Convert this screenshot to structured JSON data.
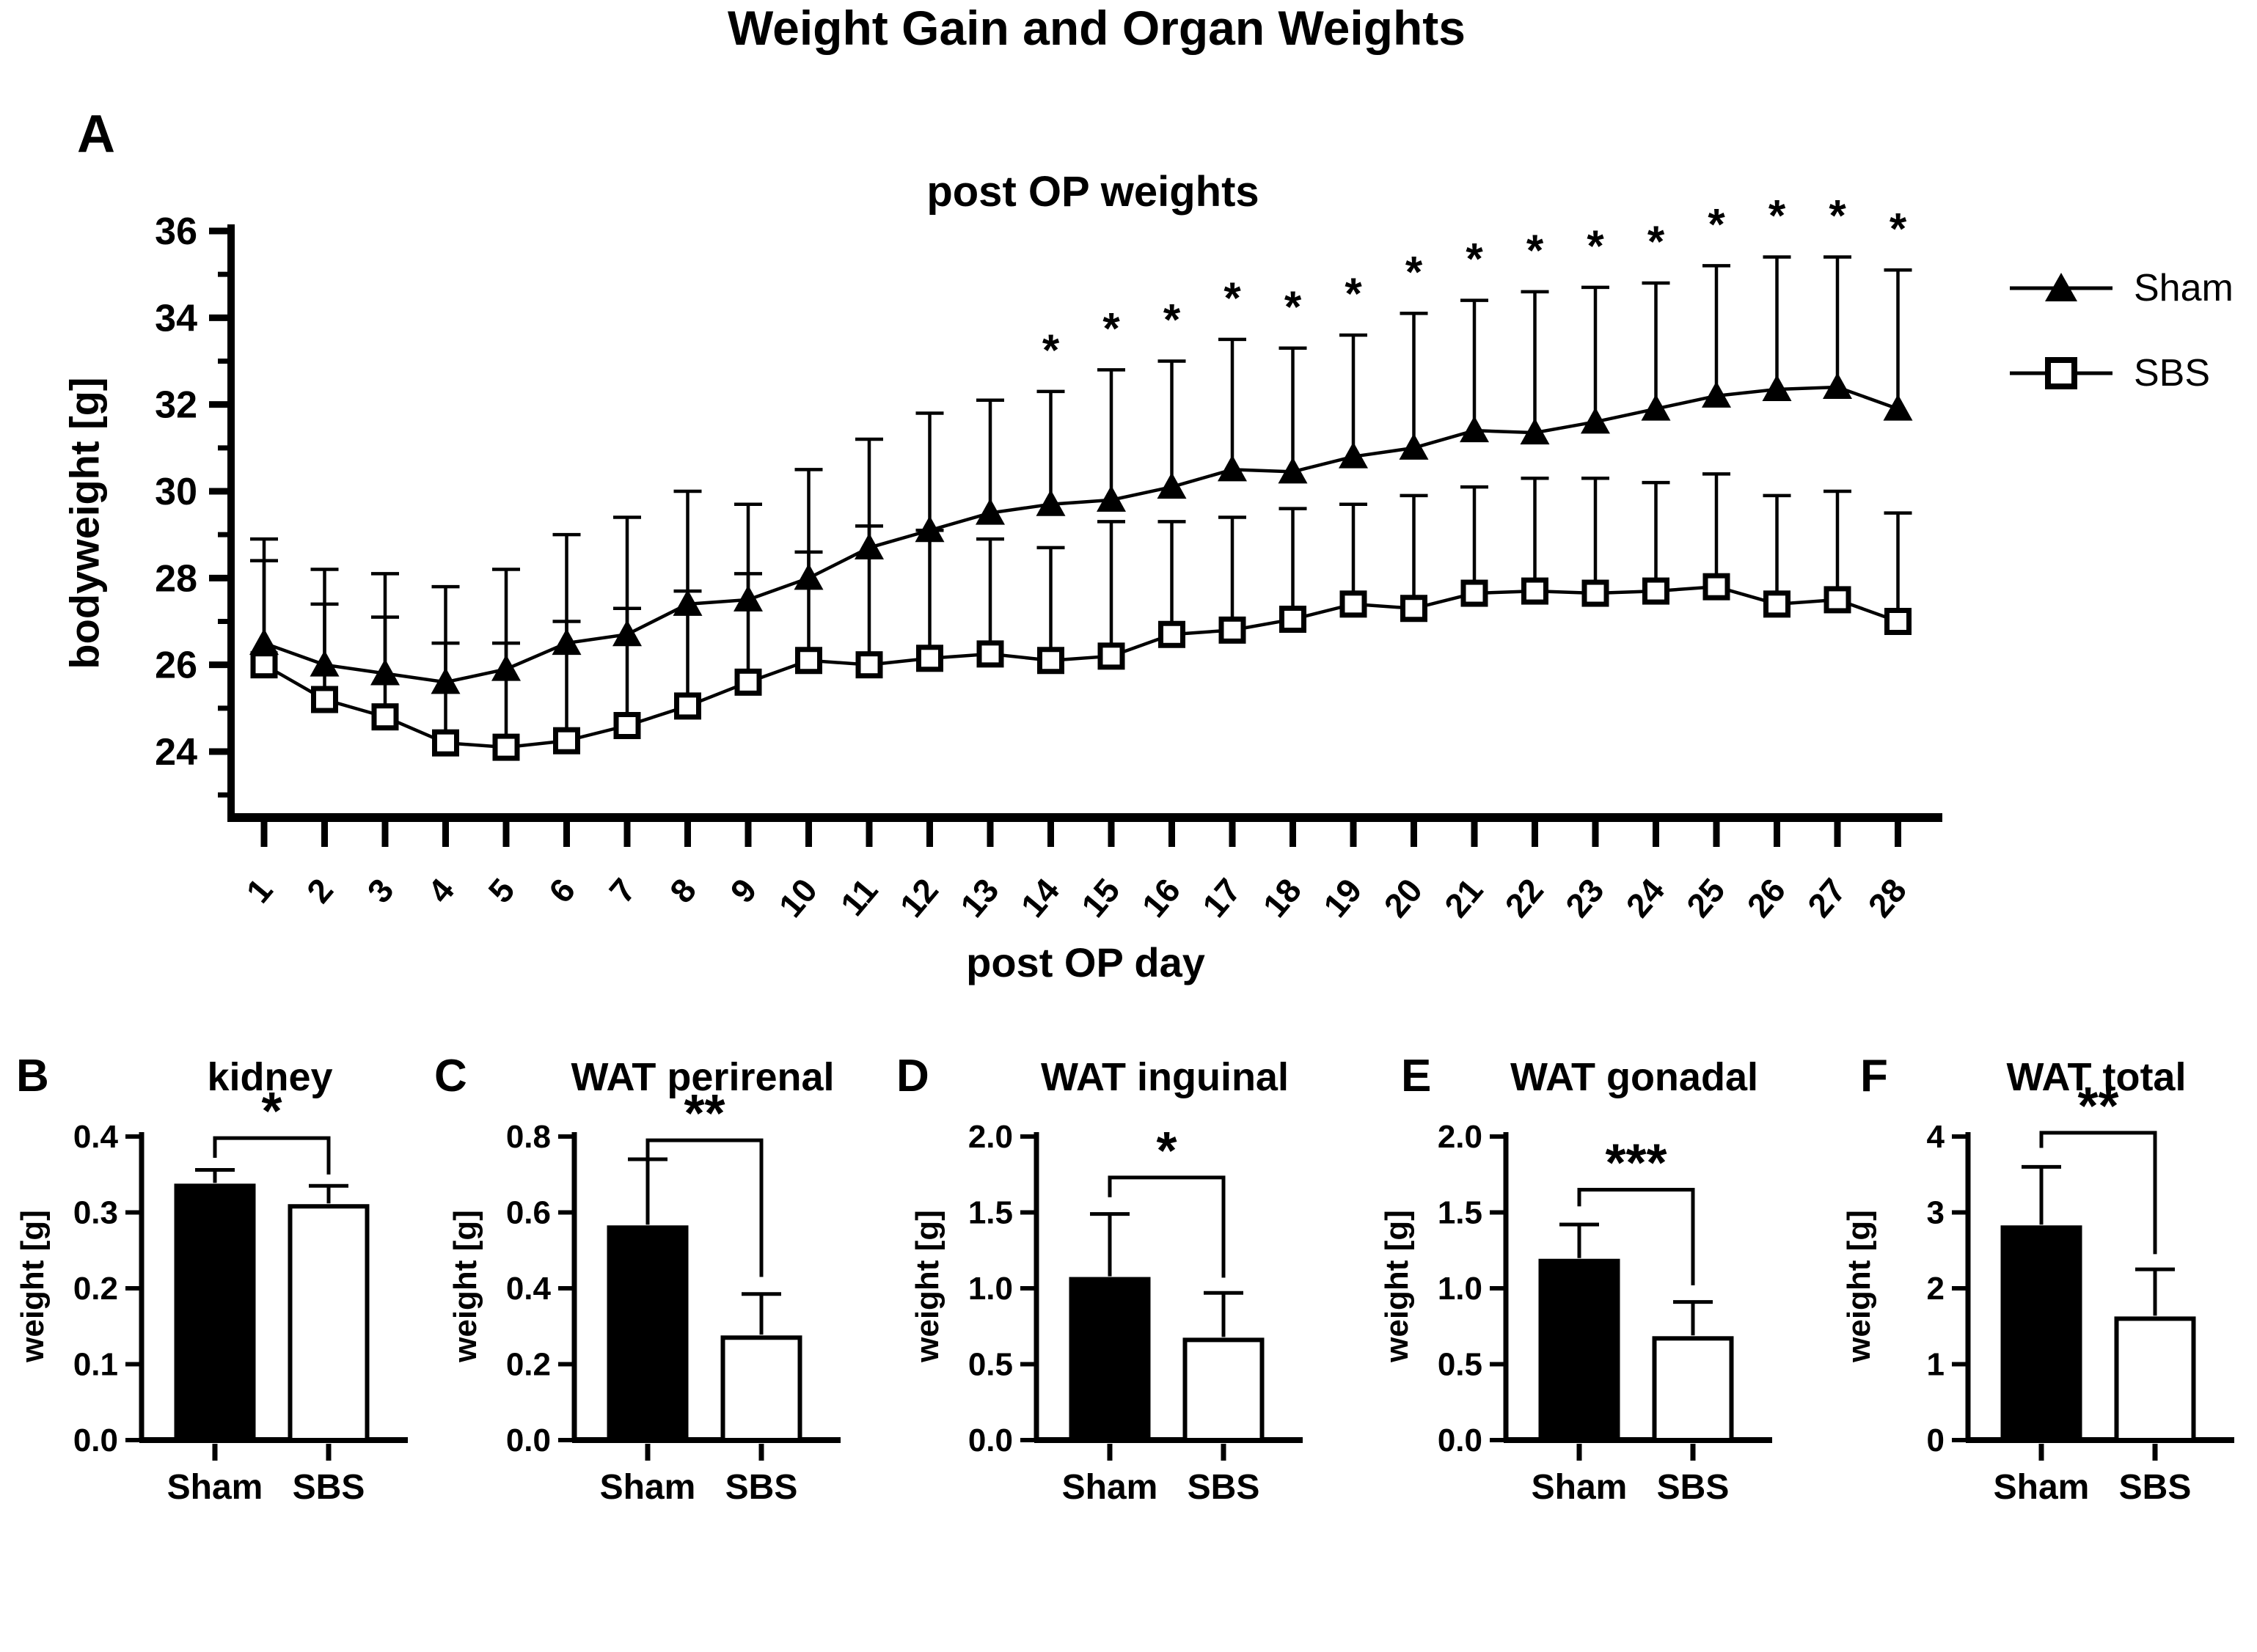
{
  "figure_title": "Weight Gain and Organ Weights",
  "colors": {
    "ink": "#000000",
    "background": "#ffffff",
    "sham_fill": "#000000",
    "sbs_fill": "#ffffff"
  },
  "chart_data": [
    {
      "panel": "A",
      "type": "line",
      "title": "post OP weights",
      "xlabel": "post OP day",
      "ylabel": "bodyweight [g]",
      "x": [
        1,
        2,
        3,
        4,
        5,
        6,
        7,
        8,
        9,
        10,
        11,
        12,
        13,
        14,
        15,
        16,
        17,
        18,
        19,
        20,
        21,
        22,
        23,
        24,
        25,
        26,
        27,
        28
      ],
      "ylim": [
        22.5,
        36
      ],
      "yticks": [
        24,
        26,
        28,
        30,
        32,
        34,
        36
      ],
      "ytick_labels": [
        "24",
        "26",
        "28",
        "30",
        "32",
        "34",
        "36"
      ],
      "yticks_minor": [
        23,
        25,
        27,
        29,
        31,
        33,
        35
      ],
      "grid": "off",
      "legend_position": "right",
      "series": [
        {
          "name": "Sham",
          "marker": "filled-triangle",
          "values": [
            26.5,
            26.0,
            25.8,
            25.6,
            25.9,
            26.5,
            26.7,
            27.4,
            27.5,
            28.0,
            28.7,
            29.1,
            29.5,
            29.7,
            29.8,
            30.1,
            30.5,
            30.45,
            30.8,
            31.0,
            31.4,
            31.35,
            31.6,
            31.9,
            32.2,
            32.35,
            32.4,
            31.9
          ],
          "err_up_top": [
            28.9,
            28.2,
            28.1,
            27.8,
            28.2,
            29.0,
            29.4,
            30.0,
            29.7,
            30.5,
            31.2,
            31.8,
            32.1,
            32.3,
            32.8,
            33.0,
            33.5,
            33.3,
            33.6,
            34.1,
            34.4,
            34.6,
            34.7,
            34.8,
            35.2,
            35.4,
            35.4,
            35.1
          ]
        },
        {
          "name": "SBS",
          "marker": "open-square",
          "values": [
            26.0,
            25.2,
            24.8,
            24.2,
            24.1,
            24.25,
            24.6,
            25.05,
            25.6,
            26.1,
            26.0,
            26.15,
            26.25,
            26.1,
            26.2,
            26.7,
            26.8,
            27.05,
            27.4,
            27.3,
            27.65,
            27.7,
            27.65,
            27.7,
            27.8,
            27.4,
            27.5,
            27.0
          ],
          "err_up_top": [
            28.4,
            27.4,
            27.1,
            26.5,
            26.5,
            27.0,
            27.3,
            27.7,
            28.1,
            28.6,
            29.2,
            29.1,
            28.9,
            28.7,
            29.3,
            29.3,
            29.4,
            29.6,
            29.7,
            29.9,
            30.1,
            30.3,
            30.3,
            30.2,
            30.4,
            29.9,
            30.0,
            29.5
          ]
        }
      ],
      "significance": {
        "symbol": "*",
        "days": [
          14,
          15,
          16,
          17,
          18,
          19,
          20,
          21,
          22,
          23,
          24,
          25,
          26,
          27,
          28
        ]
      }
    },
    {
      "panel": "B",
      "type": "bar",
      "title": "kidney",
      "ylabel": "weight [g]",
      "categories": [
        "Sham",
        "SBS"
      ],
      "values": [
        0.335,
        0.308
      ],
      "err_top": [
        0.356,
        0.335
      ],
      "ylim": [
        0,
        0.4
      ],
      "yticks": [
        0,
        0.1,
        0.2,
        0.3,
        0.4
      ],
      "ytick_labels": [
        "0.0",
        "0.1",
        "0.2",
        "0.3",
        "0.4"
      ],
      "bar_fills": [
        "#000000",
        "#ffffff"
      ],
      "significance": {
        "symbol": "*",
        "bracket_y": 0.398,
        "left_drop_to": 0.372,
        "right_drop_to": 0.35
      }
    },
    {
      "panel": "C",
      "type": "bar",
      "title": "WAT perirenal",
      "ylabel": "weight [g]",
      "categories": [
        "Sham",
        "SBS"
      ],
      "values": [
        0.56,
        0.27
      ],
      "err_top": [
        0.74,
        0.385
      ],
      "ylim": [
        0,
        0.8
      ],
      "yticks": [
        0,
        0.2,
        0.4,
        0.6,
        0.8
      ],
      "ytick_labels": [
        "0.0",
        "0.2",
        "0.4",
        "0.6",
        "0.8"
      ],
      "bar_fills": [
        "#000000",
        "#ffffff"
      ],
      "significance": {
        "symbol": "**",
        "bracket_y": 0.79,
        "left_drop_to": 0.73,
        "right_drop_to": 0.43
      }
    },
    {
      "panel": "D",
      "type": "bar",
      "title": "WAT inguinal",
      "ylabel": "weight [g]",
      "categories": [
        "Sham",
        "SBS"
      ],
      "values": [
        1.06,
        0.66
      ],
      "err_top": [
        1.49,
        0.97
      ],
      "ylim": [
        0,
        2.0
      ],
      "yticks": [
        0,
        0.5,
        1.0,
        1.5,
        2.0
      ],
      "ytick_labels": [
        "0.0",
        "0.5",
        "1.0",
        "1.5",
        "2.0"
      ],
      "bar_fills": [
        "#000000",
        "#ffffff"
      ],
      "significance": {
        "symbol": "*",
        "bracket_y": 1.73,
        "left_drop_to": 1.6,
        "right_drop_to": 1.07
      }
    },
    {
      "panel": "E",
      "type": "bar",
      "title": "WAT gonadal",
      "ylabel": "weight [g]",
      "categories": [
        "Sham",
        "SBS"
      ],
      "values": [
        1.18,
        0.67
      ],
      "err_top": [
        1.42,
        0.91
      ],
      "ylim": [
        0,
        2.0
      ],
      "yticks": [
        0,
        0.5,
        1.0,
        1.5,
        2.0
      ],
      "ytick_labels": [
        "0.0",
        "0.5",
        "1.0",
        "1.5",
        "2.0"
      ],
      "bar_fills": [
        "#000000",
        "#ffffff"
      ],
      "significance": {
        "symbol": "***",
        "bracket_y": 1.65,
        "left_drop_to": 1.54,
        "right_drop_to": 1.02
      }
    },
    {
      "panel": "F",
      "type": "bar",
      "title": "WAT total",
      "ylabel": "weight [g]",
      "categories": [
        "Sham",
        "SBS"
      ],
      "values": [
        2.8,
        1.6
      ],
      "err_top": [
        3.6,
        2.25
      ],
      "ylim": [
        0,
        4
      ],
      "yticks": [
        0,
        1,
        2,
        3,
        4
      ],
      "ytick_labels": [
        "0",
        "1",
        "2",
        "3",
        "4"
      ],
      "bar_fills": [
        "#000000",
        "#ffffff"
      ],
      "significance": {
        "symbol": "**",
        "bracket_y": 4.05,
        "left_drop_to": 3.85,
        "right_drop_to": 2.45
      }
    }
  ]
}
